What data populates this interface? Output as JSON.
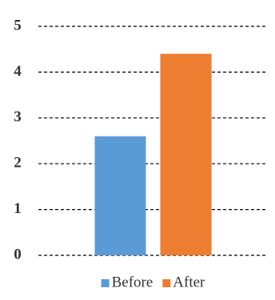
{
  "chart_data": {
    "type": "bar",
    "categories": [
      null
    ],
    "series": [
      {
        "name": "Before",
        "color": "#5b9bd5",
        "values": [
          2.6
        ]
      },
      {
        "name": "After",
        "color": "#ed7d31",
        "values": [
          4.4
        ]
      }
    ],
    "ylim": [
      0,
      5
    ],
    "yticks": [
      0,
      1,
      2,
      3,
      4,
      5
    ],
    "grid": true,
    "legend": "bottom"
  }
}
